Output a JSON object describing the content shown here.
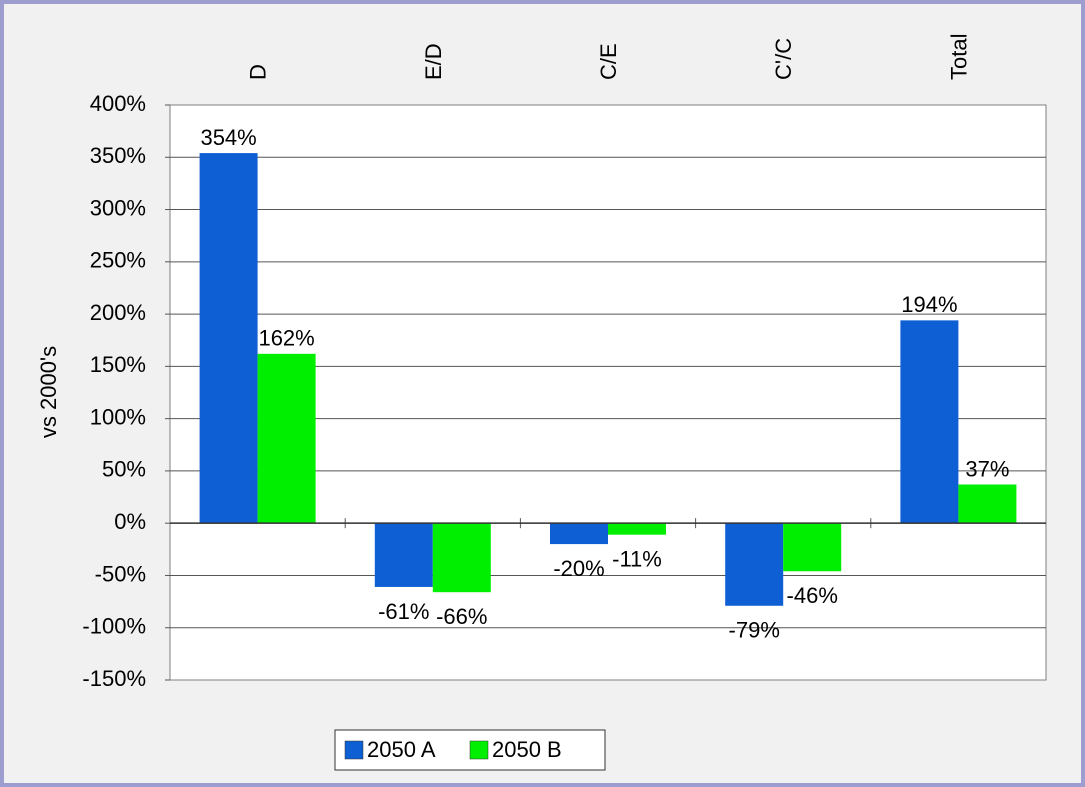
{
  "chart_data": {
    "type": "bar",
    "y_label": "vs 2000's",
    "categories": [
      "D",
      "E/D",
      "C/E",
      "C'/C",
      "Total"
    ],
    "series": [
      {
        "name": "2050 A",
        "color": "#0f5fd4",
        "values": [
          354,
          -61,
          -20,
          -79,
          194
        ],
        "value_labels": [
          "354%",
          "-61%",
          "-20%",
          "-79%",
          "194%"
        ]
      },
      {
        "name": "2050 B",
        "color": "#00ee00",
        "values": [
          162,
          -66,
          -11,
          -46,
          37
        ],
        "value_labels": [
          "162%",
          "-66%",
          "-11%",
          "-46%",
          "37%"
        ]
      }
    ],
    "ylim": [
      -150,
      400
    ],
    "yticks": [
      {
        "value": 400,
        "label": "400%"
      },
      {
        "value": 350,
        "label": "350%"
      },
      {
        "value": 300,
        "label": "300%"
      },
      {
        "value": 250,
        "label": "250%"
      },
      {
        "value": 200,
        "label": "200%"
      },
      {
        "value": 150,
        "label": "150%"
      },
      {
        "value": 100,
        "label": "100%"
      },
      {
        "value": 50,
        "label": "50%"
      },
      {
        "value": 0,
        "label": "0%"
      },
      {
        "value": -50,
        "label": "-50%"
      },
      {
        "value": -100,
        "label": "-100%"
      },
      {
        "value": -150,
        "label": "-150%"
      }
    ],
    "grid": true,
    "legend": "bottom"
  }
}
